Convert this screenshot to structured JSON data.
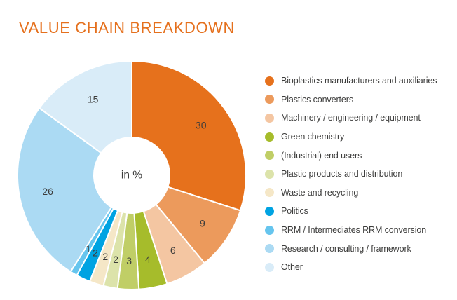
{
  "title": "VALUE CHAIN BREAKDOWN",
  "colors": {
    "title": "#e5701d",
    "label_text": "#3c3c3b",
    "background": "#ffffff",
    "slice_gap": "#ffffff"
  },
  "chart_data": {
    "type": "pie",
    "subtype": "donut",
    "title": "VALUE CHAIN BREAKDOWN",
    "center_label": "in %",
    "unit": "%",
    "start_angle_deg": 0,
    "direction": "clockwise",
    "legend_position": "right",
    "slices": [
      {
        "label": "Bioplastics manufacturers and auxiliaries",
        "value": 30,
        "color": "#e6711c"
      },
      {
        "label": "Plastics converters",
        "value": 9,
        "color": "#ec9a5c"
      },
      {
        "label": "Machinery / engineering / equipment",
        "value": 6,
        "color": "#f4c6a2"
      },
      {
        "label": "Green chemistry",
        "value": 4,
        "color": "#a6bc2b"
      },
      {
        "label": "(Industrial) end users",
        "value": 3,
        "color": "#c0ce66"
      },
      {
        "label": "Plastic products and distribution",
        "value": 2,
        "color": "#dce3aa"
      },
      {
        "label": "Waste and recycling",
        "value": 2,
        "color": "#f5e7c7"
      },
      {
        "label": "Politics",
        "value": 2,
        "color": "#00a3e2"
      },
      {
        "label": "RRM / Intermediates RRM conversion",
        "value": 1,
        "color": "#66c5ee"
      },
      {
        "label": "Research / consulting / framework",
        "value": 26,
        "color": "#abdaf3"
      },
      {
        "label": "Other",
        "value": 15,
        "color": "#d9ecf8"
      }
    ]
  }
}
